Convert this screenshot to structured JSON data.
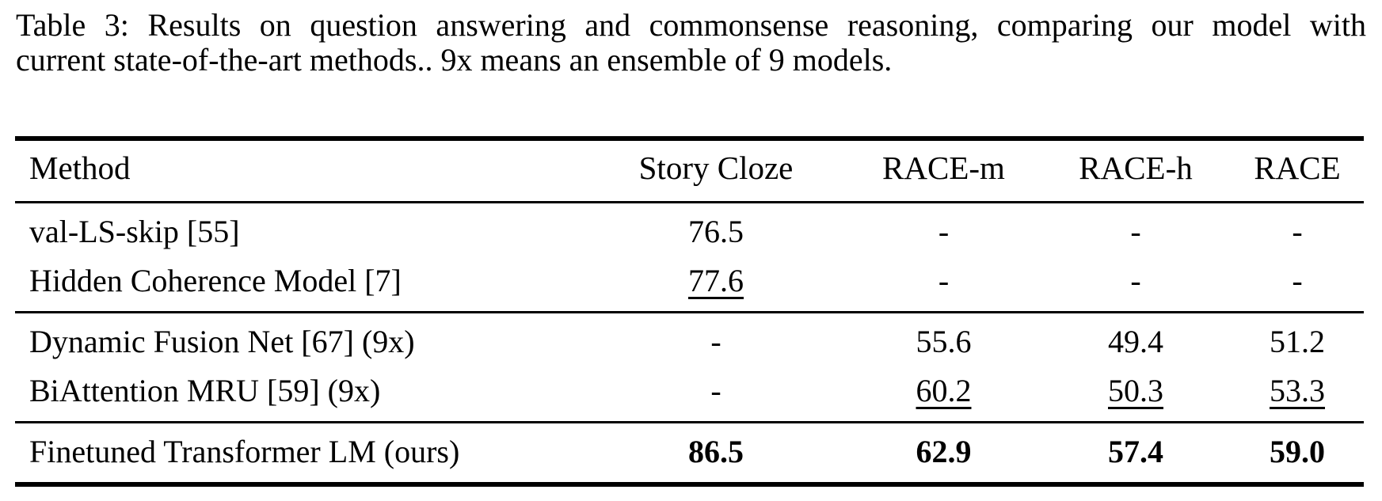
{
  "caption": {
    "line1": "Table 3: Results on question answering and commonsense reasoning, comparing our model with",
    "line2": "current state-of-the-art methods.. 9x means an ensemble of 9 models."
  },
  "table": {
    "columns": [
      "Method",
      "Story Cloze",
      "RACE-m",
      "RACE-h",
      "RACE"
    ],
    "groups": [
      {
        "rows": [
          {
            "method": "val-LS-skip [55]",
            "values": [
              "76.5",
              "-",
              "-",
              "-"
            ],
            "underlined_values": []
          },
          {
            "method": "Hidden Coherence Model [7]",
            "values": [
              "77.6",
              "-",
              "-",
              "-"
            ],
            "underlined_values": [
              0
            ]
          }
        ]
      },
      {
        "rows": [
          {
            "method": "Dynamic Fusion Net [67] (9x)",
            "values": [
              "-",
              "55.6",
              "49.4",
              "51.2"
            ],
            "underlined_values": []
          },
          {
            "method": "BiAttention MRU [59] (9x)",
            "values": [
              "-",
              "60.2",
              "50.3",
              "53.3"
            ],
            "underlined_values": [
              1,
              2,
              3
            ]
          }
        ]
      },
      {
        "rows": [
          {
            "method": "Finetuned Transformer LM (ours)",
            "values": [
              "86.5",
              "62.9",
              "57.4",
              "59.0"
            ],
            "underlined_values": [],
            "bold_values": true
          }
        ]
      }
    ]
  },
  "colors": {
    "text": "#000000",
    "background": "#ffffff"
  }
}
